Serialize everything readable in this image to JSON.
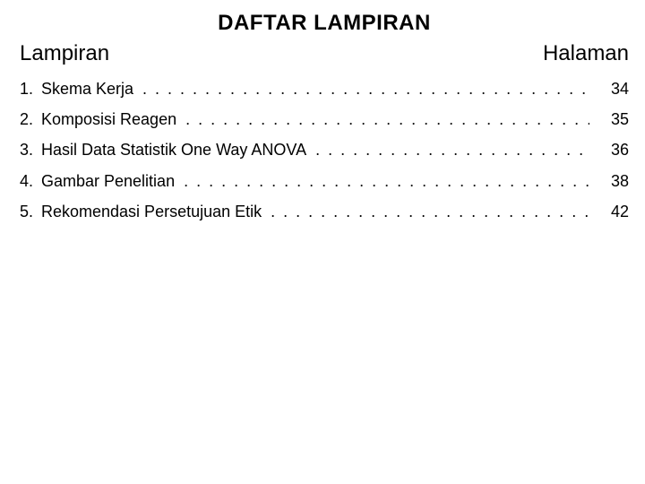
{
  "title": "DAFTAR LAMPIRAN",
  "header": {
    "left": "Lampiran",
    "right": "Halaman"
  },
  "entries": [
    {
      "num": "1.",
      "label": "Skema Kerja",
      "page": "34"
    },
    {
      "num": "2.",
      "label": "Komposisi Reagen",
      "page": "35"
    },
    {
      "num": "3.",
      "label": "Hasil Data Statistik One Way ANOVA",
      "page": "36"
    },
    {
      "num": "4.",
      "label": "Gambar Penelitian",
      "page": "38"
    },
    {
      "num": "5.",
      "label": "Rekomendasi Persetujuan Etik",
      "page": "42"
    }
  ],
  "colors": {
    "background": "#ffffff",
    "text": "#000000"
  },
  "typography": {
    "title_fontsize": 24,
    "header_fontsize": 24,
    "body_fontsize": 18,
    "family": "Trebuchet MS"
  }
}
